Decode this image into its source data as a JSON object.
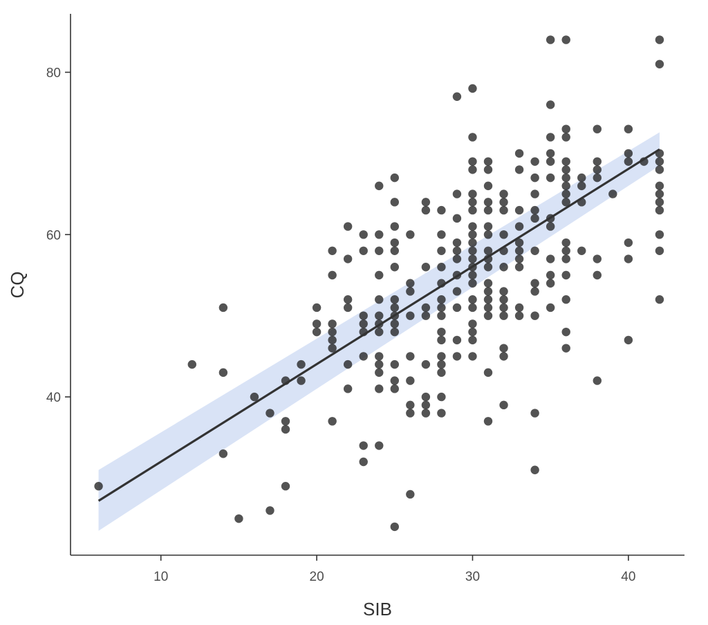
{
  "chart_data": {
    "type": "scatter",
    "xlabel": "SIB",
    "ylabel": "CQ",
    "xlim": [
      4.2,
      43.6
    ],
    "ylim": [
      20.5,
      87.2
    ],
    "x_ticks": [
      10,
      20,
      30,
      40
    ],
    "y_ticks": [
      40,
      60,
      80
    ],
    "grid": false,
    "colors": {
      "points": "#222222",
      "band": "#c9d7f2",
      "line": "#333333"
    },
    "regression": {
      "x": [
        6,
        42
      ],
      "y": [
        27.2,
        70.5
      ],
      "ci_lower": [
        23.5,
        68.5
      ],
      "ci_upper": [
        31.0,
        72.6
      ]
    },
    "points": [
      [
        6,
        29
      ],
      [
        12,
        44
      ],
      [
        14,
        51
      ],
      [
        14,
        43
      ],
      [
        14,
        33
      ],
      [
        15,
        25
      ],
      [
        16,
        40
      ],
      [
        17,
        38
      ],
      [
        17,
        26
      ],
      [
        18,
        42
      ],
      [
        18,
        37
      ],
      [
        18,
        36
      ],
      [
        18,
        29
      ],
      [
        19,
        44
      ],
      [
        19,
        42
      ],
      [
        20,
        51
      ],
      [
        20,
        49
      ],
      [
        20,
        48
      ],
      [
        21,
        58
      ],
      [
        21,
        55
      ],
      [
        21,
        49
      ],
      [
        21,
        48
      ],
      [
        21,
        47
      ],
      [
        21,
        46
      ],
      [
        21,
        37
      ],
      [
        22,
        61
      ],
      [
        22,
        57
      ],
      [
        22,
        52
      ],
      [
        22,
        51
      ],
      [
        22,
        44
      ],
      [
        22,
        41
      ],
      [
        23,
        60
      ],
      [
        23,
        58
      ],
      [
        23,
        50
      ],
      [
        23,
        49
      ],
      [
        23,
        48
      ],
      [
        23,
        45
      ],
      [
        23,
        34
      ],
      [
        23,
        32
      ],
      [
        24,
        66
      ],
      [
        24,
        60
      ],
      [
        24,
        58
      ],
      [
        24,
        55
      ],
      [
        24,
        52
      ],
      [
        24,
        50
      ],
      [
        24,
        49
      ],
      [
        24,
        48
      ],
      [
        24,
        45
      ],
      [
        24,
        44
      ],
      [
        24,
        43
      ],
      [
        24,
        41
      ],
      [
        24,
        34
      ],
      [
        25,
        67
      ],
      [
        25,
        64
      ],
      [
        25,
        61
      ],
      [
        25,
        59
      ],
      [
        25,
        58
      ],
      [
        25,
        56
      ],
      [
        25,
        52
      ],
      [
        25,
        51
      ],
      [
        25,
        50
      ],
      [
        25,
        49
      ],
      [
        25,
        48
      ],
      [
        25,
        44
      ],
      [
        25,
        42
      ],
      [
        25,
        41
      ],
      [
        25,
        24
      ],
      [
        26,
        60
      ],
      [
        26,
        54
      ],
      [
        26,
        53
      ],
      [
        26,
        50
      ],
      [
        26,
        45
      ],
      [
        26,
        42
      ],
      [
        26,
        39
      ],
      [
        26,
        38
      ],
      [
        26,
        28
      ],
      [
        27,
        64
      ],
      [
        27,
        63
      ],
      [
        27,
        56
      ],
      [
        27,
        51
      ],
      [
        27,
        50
      ],
      [
        27,
        44
      ],
      [
        27,
        40
      ],
      [
        27,
        39
      ],
      [
        27,
        38
      ],
      [
        28,
        63
      ],
      [
        28,
        60
      ],
      [
        28,
        58
      ],
      [
        28,
        56
      ],
      [
        28,
        54
      ],
      [
        28,
        52
      ],
      [
        28,
        51
      ],
      [
        28,
        50
      ],
      [
        28,
        48
      ],
      [
        28,
        47
      ],
      [
        28,
        45
      ],
      [
        28,
        44
      ],
      [
        28,
        43
      ],
      [
        28,
        40
      ],
      [
        28,
        38
      ],
      [
        29,
        77
      ],
      [
        29,
        65
      ],
      [
        29,
        62
      ],
      [
        29,
        59
      ],
      [
        29,
        58
      ],
      [
        29,
        57
      ],
      [
        29,
        55
      ],
      [
        29,
        53
      ],
      [
        29,
        51
      ],
      [
        29,
        47
      ],
      [
        29,
        45
      ],
      [
        30,
        78
      ],
      [
        30,
        72
      ],
      [
        30,
        69
      ],
      [
        30,
        68
      ],
      [
        30,
        65
      ],
      [
        30,
        64
      ],
      [
        30,
        63
      ],
      [
        30,
        61
      ],
      [
        30,
        60
      ],
      [
        30,
        59
      ],
      [
        30,
        58
      ],
      [
        30,
        57
      ],
      [
        30,
        56
      ],
      [
        30,
        55
      ],
      [
        30,
        54
      ],
      [
        30,
        52
      ],
      [
        30,
        51
      ],
      [
        30,
        49
      ],
      [
        30,
        48
      ],
      [
        30,
        47
      ],
      [
        30,
        45
      ],
      [
        31,
        69
      ],
      [
        31,
        68
      ],
      [
        31,
        66
      ],
      [
        31,
        64
      ],
      [
        31,
        63
      ],
      [
        31,
        61
      ],
      [
        31,
        60
      ],
      [
        31,
        58
      ],
      [
        31,
        57
      ],
      [
        31,
        56
      ],
      [
        31,
        54
      ],
      [
        31,
        53
      ],
      [
        31,
        52
      ],
      [
        31,
        51
      ],
      [
        31,
        50
      ],
      [
        31,
        43
      ],
      [
        31,
        37
      ],
      [
        32,
        65
      ],
      [
        32,
        64
      ],
      [
        32,
        63
      ],
      [
        32,
        60
      ],
      [
        32,
        58
      ],
      [
        32,
        56
      ],
      [
        32,
        53
      ],
      [
        32,
        52
      ],
      [
        32,
        51
      ],
      [
        32,
        50
      ],
      [
        32,
        46
      ],
      [
        32,
        45
      ],
      [
        32,
        39
      ],
      [
        33,
        70
      ],
      [
        33,
        68
      ],
      [
        33,
        63
      ],
      [
        33,
        61
      ],
      [
        33,
        59
      ],
      [
        33,
        58
      ],
      [
        33,
        57
      ],
      [
        33,
        56
      ],
      [
        33,
        51
      ],
      [
        33,
        50
      ],
      [
        34,
        69
      ],
      [
        34,
        67
      ],
      [
        34,
        65
      ],
      [
        34,
        63
      ],
      [
        34,
        62
      ],
      [
        34,
        58
      ],
      [
        34,
        54
      ],
      [
        34,
        53
      ],
      [
        34,
        50
      ],
      [
        34,
        38
      ],
      [
        34,
        31
      ],
      [
        35,
        84
      ],
      [
        35,
        76
      ],
      [
        35,
        72
      ],
      [
        35,
        70
      ],
      [
        35,
        69
      ],
      [
        35,
        67
      ],
      [
        35,
        62
      ],
      [
        35,
        61
      ],
      [
        35,
        57
      ],
      [
        35,
        55
      ],
      [
        35,
        54
      ],
      [
        35,
        51
      ],
      [
        36,
        84
      ],
      [
        36,
        73
      ],
      [
        36,
        72
      ],
      [
        36,
        69
      ],
      [
        36,
        68
      ],
      [
        36,
        67
      ],
      [
        36,
        66
      ],
      [
        36,
        65
      ],
      [
        36,
        64
      ],
      [
        36,
        59
      ],
      [
        36,
        58
      ],
      [
        36,
        57
      ],
      [
        36,
        55
      ],
      [
        36,
        52
      ],
      [
        36,
        48
      ],
      [
        36,
        46
      ],
      [
        37,
        67
      ],
      [
        37,
        66
      ],
      [
        37,
        64
      ],
      [
        37,
        58
      ],
      [
        38,
        73
      ],
      [
        38,
        69
      ],
      [
        38,
        68
      ],
      [
        38,
        67
      ],
      [
        38,
        57
      ],
      [
        38,
        55
      ],
      [
        38,
        42
      ],
      [
        39,
        65
      ],
      [
        40,
        73
      ],
      [
        40,
        70
      ],
      [
        40,
        69
      ],
      [
        40,
        59
      ],
      [
        40,
        57
      ],
      [
        40,
        47
      ],
      [
        41,
        69
      ],
      [
        42,
        84
      ],
      [
        42,
        81
      ],
      [
        42,
        70
      ],
      [
        42,
        69
      ],
      [
        42,
        68
      ],
      [
        42,
        66
      ],
      [
        42,
        65
      ],
      [
        42,
        64
      ],
      [
        42,
        63
      ],
      [
        42,
        60
      ],
      [
        42,
        58
      ],
      [
        42,
        52
      ]
    ]
  }
}
